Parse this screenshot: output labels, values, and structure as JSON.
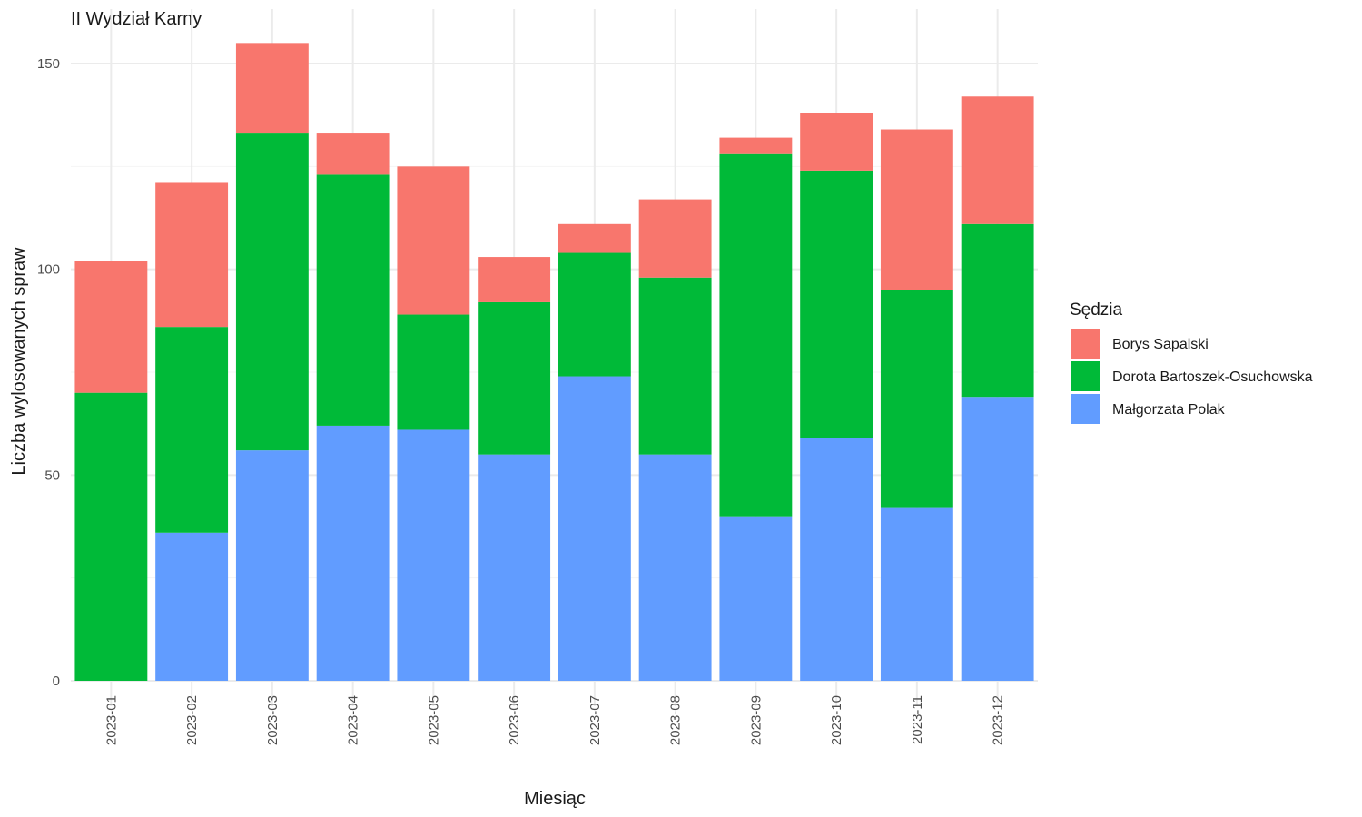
{
  "chart_data": {
    "type": "bar",
    "stacked": true,
    "title": "II Wydział Karny",
    "xlabel": "Miesiąc",
    "ylabel": "Liczba wylosowanych spraw",
    "categories": [
      "2023-01",
      "2023-02",
      "2023-03",
      "2023-04",
      "2023-05",
      "2023-06",
      "2023-07",
      "2023-08",
      "2023-09",
      "2023-10",
      "2023-11",
      "2023-12"
    ],
    "ylim": [
      0,
      160
    ],
    "yticks": [
      0,
      50,
      100,
      150
    ],
    "grid": true,
    "legend": {
      "title": "Sędzia",
      "position": "right"
    },
    "series": [
      {
        "name": "Borys Sapalski",
        "color": "#F8766D",
        "values": [
          32,
          35,
          22,
          10,
          36,
          11,
          7,
          19,
          4,
          14,
          39,
          31
        ]
      },
      {
        "name": "Dorota Bartoszek-Osuchowska",
        "color": "#00BA38",
        "values": [
          70,
          50,
          77,
          61,
          28,
          37,
          30,
          43,
          88,
          65,
          53,
          42
        ]
      },
      {
        "name": "Małgorzata Polak",
        "color": "#619CFF",
        "values": [
          0,
          36,
          56,
          62,
          61,
          55,
          74,
          55,
          40,
          59,
          42,
          69
        ]
      }
    ]
  }
}
